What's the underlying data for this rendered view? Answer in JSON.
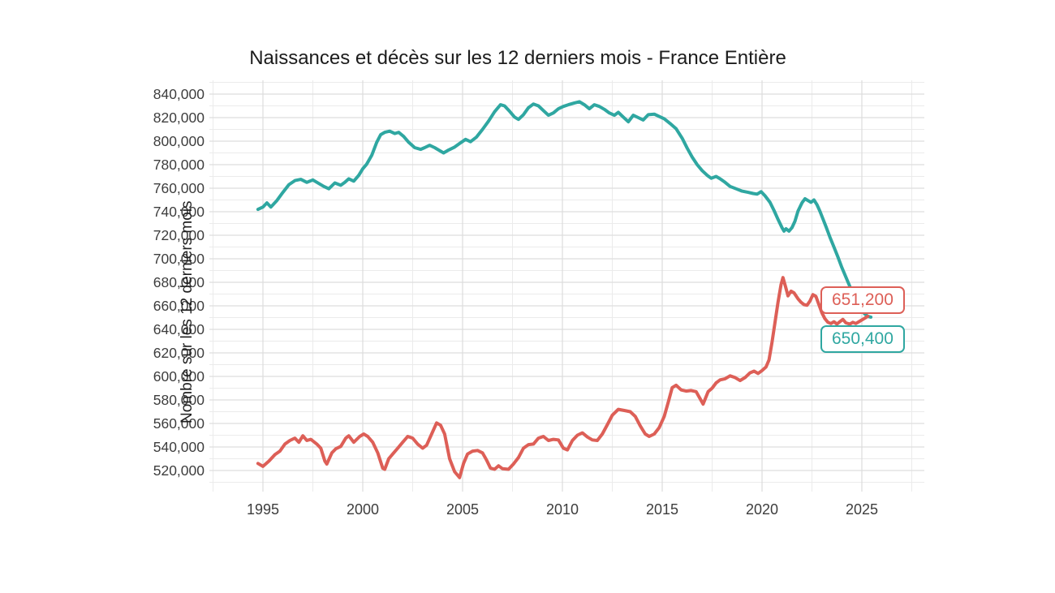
{
  "chart_data": {
    "type": "line",
    "title": "Naissances et décès sur les 12 derniers mois - France Entière",
    "xlabel": "",
    "ylabel": "Nombre sur les 12 derniers mois",
    "legend_position": "none",
    "grid": true,
    "background": "#ffffff",
    "grid_minor_color": "#ebebeb",
    "grid_major_color": "#dedede",
    "tick_label_color": "#3d3d3d",
    "x_ticks": [
      1995,
      2000,
      2005,
      2010,
      2015,
      2020,
      2025
    ],
    "y_ticks": [
      520000,
      540000,
      560000,
      580000,
      600000,
      620000,
      640000,
      660000,
      680000,
      700000,
      720000,
      740000,
      760000,
      780000,
      800000,
      820000,
      840000
    ],
    "x_range": [
      1992.3,
      2028.35
    ],
    "y_range": [
      502000,
      852000
    ],
    "x_minor_step": 2.5,
    "y_minor_step": 10000,
    "series": [
      {
        "name": "Naissances",
        "color": "#2fa7a1",
        "end_value": 650400,
        "end_label": "650,400",
        "points": [
          [
            1994.75,
            742000
          ],
          [
            1995.0,
            744000
          ],
          [
            1995.2,
            747500
          ],
          [
            1995.4,
            744000
          ],
          [
            1995.7,
            749500
          ],
          [
            1996.0,
            756500
          ],
          [
            1996.3,
            763000
          ],
          [
            1996.6,
            766500
          ],
          [
            1996.9,
            767500
          ],
          [
            1997.2,
            765000
          ],
          [
            1997.5,
            767000
          ],
          [
            1997.8,
            764000
          ],
          [
            1998.05,
            761500
          ],
          [
            1998.3,
            759500
          ],
          [
            1998.6,
            764500
          ],
          [
            1998.9,
            762500
          ],
          [
            1999.1,
            765000
          ],
          [
            1999.3,
            768000
          ],
          [
            1999.55,
            766000
          ],
          [
            1999.8,
            771000
          ],
          [
            2000.0,
            776500
          ],
          [
            2000.2,
            780500
          ],
          [
            2000.45,
            788000
          ],
          [
            2000.7,
            799000
          ],
          [
            2000.9,
            805500
          ],
          [
            2001.1,
            807500
          ],
          [
            2001.35,
            808500
          ],
          [
            2001.6,
            806500
          ],
          [
            2001.8,
            807500
          ],
          [
            2002.05,
            804000
          ],
          [
            2002.3,
            799000
          ],
          [
            2002.6,
            794500
          ],
          [
            2002.9,
            793000
          ],
          [
            2003.1,
            794500
          ],
          [
            2003.35,
            796500
          ],
          [
            2003.6,
            794500
          ],
          [
            2003.85,
            792000
          ],
          [
            2004.05,
            790000
          ],
          [
            2004.3,
            792500
          ],
          [
            2004.6,
            795000
          ],
          [
            2004.85,
            798000
          ],
          [
            2005.15,
            801500
          ],
          [
            2005.4,
            799500
          ],
          [
            2005.7,
            803500
          ],
          [
            2006.0,
            810000
          ],
          [
            2006.3,
            817000
          ],
          [
            2006.6,
            825000
          ],
          [
            2006.9,
            831000
          ],
          [
            2007.1,
            830000
          ],
          [
            2007.35,
            825500
          ],
          [
            2007.6,
            820500
          ],
          [
            2007.8,
            818500
          ],
          [
            2008.05,
            822500
          ],
          [
            2008.3,
            828500
          ],
          [
            2008.55,
            831500
          ],
          [
            2008.8,
            830000
          ],
          [
            2009.05,
            826000
          ],
          [
            2009.3,
            822000
          ],
          [
            2009.55,
            824000
          ],
          [
            2009.8,
            827500
          ],
          [
            2010.05,
            829500
          ],
          [
            2010.3,
            831000
          ],
          [
            2010.6,
            832500
          ],
          [
            2010.85,
            833500
          ],
          [
            2011.1,
            831000
          ],
          [
            2011.35,
            827500
          ],
          [
            2011.6,
            831000
          ],
          [
            2011.85,
            829500
          ],
          [
            2012.1,
            827000
          ],
          [
            2012.35,
            824000
          ],
          [
            2012.6,
            822000
          ],
          [
            2012.8,
            824500
          ],
          [
            2013.05,
            820500
          ],
          [
            2013.3,
            816500
          ],
          [
            2013.55,
            822000
          ],
          [
            2013.8,
            820000
          ],
          [
            2014.05,
            818000
          ],
          [
            2014.3,
            822500
          ],
          [
            2014.6,
            823000
          ],
          [
            2014.85,
            821000
          ],
          [
            2015.1,
            819000
          ],
          [
            2015.4,
            815000
          ],
          [
            2015.7,
            810500
          ],
          [
            2016.0,
            802500
          ],
          [
            2016.25,
            794000
          ],
          [
            2016.5,
            786500
          ],
          [
            2016.75,
            780000
          ],
          [
            2017.0,
            775000
          ],
          [
            2017.25,
            771000
          ],
          [
            2017.45,
            768500
          ],
          [
            2017.7,
            770000
          ],
          [
            2017.9,
            768000
          ],
          [
            2018.15,
            765000
          ],
          [
            2018.4,
            761500
          ],
          [
            2018.7,
            759500
          ],
          [
            2019.0,
            757500
          ],
          [
            2019.3,
            756500
          ],
          [
            2019.55,
            755500
          ],
          [
            2019.75,
            755000
          ],
          [
            2019.95,
            757000
          ],
          [
            2020.15,
            753500
          ],
          [
            2020.4,
            748000
          ],
          [
            2020.6,
            741000
          ],
          [
            2020.8,
            733500
          ],
          [
            2021.0,
            726500
          ],
          [
            2021.1,
            723500
          ],
          [
            2021.2,
            725500
          ],
          [
            2021.35,
            723500
          ],
          [
            2021.5,
            726500
          ],
          [
            2021.65,
            732000
          ],
          [
            2021.8,
            740500
          ],
          [
            2022.0,
            747500
          ],
          [
            2022.15,
            751000
          ],
          [
            2022.3,
            749500
          ],
          [
            2022.45,
            748000
          ],
          [
            2022.6,
            750000
          ],
          [
            2022.75,
            746000
          ],
          [
            2022.9,
            740500
          ],
          [
            2023.05,
            734000
          ],
          [
            2023.2,
            727500
          ],
          [
            2023.4,
            718500
          ],
          [
            2023.6,
            710000
          ],
          [
            2023.8,
            701500
          ],
          [
            2024.0,
            692500
          ],
          [
            2024.2,
            684500
          ],
          [
            2024.4,
            676500
          ],
          [
            2024.6,
            668500
          ],
          [
            2024.8,
            661500
          ],
          [
            2025.0,
            656000
          ],
          [
            2025.15,
            653000
          ],
          [
            2025.3,
            651000
          ],
          [
            2025.45,
            650400
          ]
        ]
      },
      {
        "name": "Décès",
        "color": "#dd5f57",
        "end_value": 651200,
        "end_label": "651,200",
        "points": [
          [
            1994.75,
            526000
          ],
          [
            1995.0,
            523500
          ],
          [
            1995.3,
            528000
          ],
          [
            1995.6,
            533500
          ],
          [
            1995.85,
            536500
          ],
          [
            1996.1,
            542500
          ],
          [
            1996.35,
            545500
          ],
          [
            1996.6,
            547500
          ],
          [
            1996.8,
            544000
          ],
          [
            1997.0,
            549500
          ],
          [
            1997.2,
            545500
          ],
          [
            1997.4,
            546500
          ],
          [
            1997.7,
            542500
          ],
          [
            1997.9,
            539000
          ],
          [
            1998.1,
            528000
          ],
          [
            1998.2,
            525500
          ],
          [
            1998.45,
            535000
          ],
          [
            1998.65,
            538500
          ],
          [
            1998.9,
            540500
          ],
          [
            1999.15,
            547500
          ],
          [
            1999.3,
            549500
          ],
          [
            1999.55,
            544000
          ],
          [
            1999.85,
            549000
          ],
          [
            2000.05,
            551000
          ],
          [
            2000.25,
            549000
          ],
          [
            2000.5,
            544000
          ],
          [
            2000.75,
            535000
          ],
          [
            2001.0,
            522000
          ],
          [
            2001.1,
            521000
          ],
          [
            2001.3,
            530000
          ],
          [
            2001.5,
            534000
          ],
          [
            2001.75,
            539000
          ],
          [
            2002.0,
            544000
          ],
          [
            2002.25,
            549000
          ],
          [
            2002.5,
            547500
          ],
          [
            2002.75,
            542500
          ],
          [
            2003.0,
            539000
          ],
          [
            2003.2,
            541500
          ],
          [
            2003.45,
            551000
          ],
          [
            2003.7,
            560500
          ],
          [
            2003.9,
            558500
          ],
          [
            2004.1,
            551000
          ],
          [
            2004.35,
            530000
          ],
          [
            2004.6,
            519000
          ],
          [
            2004.85,
            514000
          ],
          [
            2005.05,
            526000
          ],
          [
            2005.25,
            534000
          ],
          [
            2005.5,
            536500
          ],
          [
            2005.75,
            537000
          ],
          [
            2006.0,
            535000
          ],
          [
            2006.2,
            529000
          ],
          [
            2006.4,
            522000
          ],
          [
            2006.6,
            521000
          ],
          [
            2006.8,
            524000
          ],
          [
            2007.0,
            521500
          ],
          [
            2007.3,
            521000
          ],
          [
            2007.55,
            525500
          ],
          [
            2007.8,
            531000
          ],
          [
            2008.05,
            539000
          ],
          [
            2008.3,
            542000
          ],
          [
            2008.55,
            542500
          ],
          [
            2008.8,
            547500
          ],
          [
            2009.05,
            549000
          ],
          [
            2009.3,
            545500
          ],
          [
            2009.55,
            546500
          ],
          [
            2009.8,
            546000
          ],
          [
            2010.05,
            539000
          ],
          [
            2010.25,
            537500
          ],
          [
            2010.5,
            545500
          ],
          [
            2010.75,
            550000
          ],
          [
            2011.0,
            552000
          ],
          [
            2011.25,
            548500
          ],
          [
            2011.5,
            546000
          ],
          [
            2011.75,
            545500
          ],
          [
            2012.0,
            551000
          ],
          [
            2012.25,
            559000
          ],
          [
            2012.5,
            567000
          ],
          [
            2012.8,
            572000
          ],
          [
            2013.1,
            571000
          ],
          [
            2013.4,
            570000
          ],
          [
            2013.65,
            566000
          ],
          [
            2013.9,
            558000
          ],
          [
            2014.15,
            551000
          ],
          [
            2014.35,
            549000
          ],
          [
            2014.6,
            551000
          ],
          [
            2014.85,
            556500
          ],
          [
            2015.1,
            566000
          ],
          [
            2015.3,
            578000
          ],
          [
            2015.5,
            590500
          ],
          [
            2015.7,
            592500
          ],
          [
            2015.95,
            588500
          ],
          [
            2016.2,
            587500
          ],
          [
            2016.45,
            588000
          ],
          [
            2016.7,
            587000
          ],
          [
            2016.9,
            581000
          ],
          [
            2017.05,
            576500
          ],
          [
            2017.3,
            587000
          ],
          [
            2017.5,
            590000
          ],
          [
            2017.7,
            594500
          ],
          [
            2017.9,
            597000
          ],
          [
            2018.15,
            598000
          ],
          [
            2018.4,
            600500
          ],
          [
            2018.65,
            599000
          ],
          [
            2018.9,
            596500
          ],
          [
            2019.15,
            599000
          ],
          [
            2019.4,
            603000
          ],
          [
            2019.6,
            604500
          ],
          [
            2019.8,
            602500
          ],
          [
            2020.0,
            605000
          ],
          [
            2020.2,
            608000
          ],
          [
            2020.35,
            614000
          ],
          [
            2020.5,
            629000
          ],
          [
            2020.65,
            646000
          ],
          [
            2020.8,
            663000
          ],
          [
            2020.95,
            678000
          ],
          [
            2021.05,
            684000
          ],
          [
            2021.2,
            675000
          ],
          [
            2021.3,
            668500
          ],
          [
            2021.45,
            672500
          ],
          [
            2021.6,
            671000
          ],
          [
            2021.8,
            666000
          ],
          [
            2021.95,
            663000
          ],
          [
            2022.1,
            661000
          ],
          [
            2022.25,
            660500
          ],
          [
            2022.4,
            664000
          ],
          [
            2022.55,
            669500
          ],
          [
            2022.7,
            668000
          ],
          [
            2022.85,
            661000
          ],
          [
            2023.0,
            654000
          ],
          [
            2023.15,
            649000
          ],
          [
            2023.3,
            646000
          ],
          [
            2023.45,
            645000
          ],
          [
            2023.6,
            646500
          ],
          [
            2023.75,
            644500
          ],
          [
            2023.9,
            646500
          ],
          [
            2024.05,
            648500
          ],
          [
            2024.2,
            645500
          ],
          [
            2024.4,
            644500
          ],
          [
            2024.55,
            646000
          ],
          [
            2024.7,
            645000
          ],
          [
            2024.85,
            646500
          ],
          [
            2025.0,
            648000
          ],
          [
            2025.15,
            649500
          ],
          [
            2025.3,
            651200
          ]
        ]
      }
    ]
  },
  "callouts": {
    "deaths_label": "651,200",
    "births_label": "650,400"
  }
}
